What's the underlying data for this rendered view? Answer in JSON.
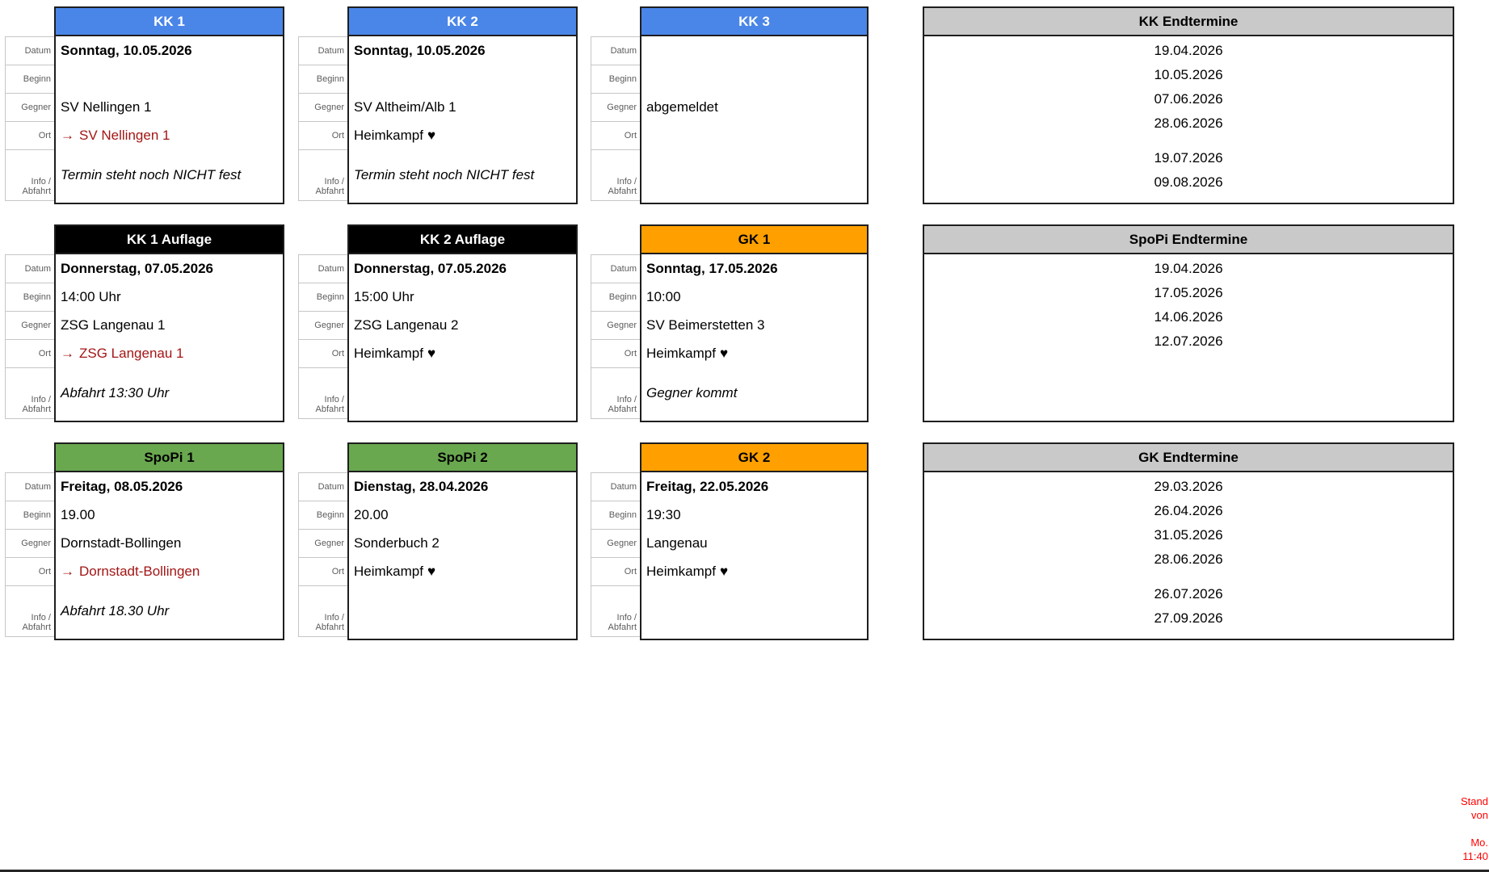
{
  "colors": {
    "header_blue": "#4a86e8",
    "header_black": "#000000",
    "header_orange": "#ffa000",
    "header_green": "#6aa84f",
    "header_gray": "#c9c9c9",
    "away_red": "#a31515",
    "note_red": "#ff0000",
    "border_dark": "#1e1e1e"
  },
  "row_labels": {
    "datum": "Datum",
    "beginn": "Beginn",
    "gegner": "Gegner",
    "ort": "Ort",
    "info_line1": "Info /",
    "info_line2": "Abfahrt"
  },
  "cards": [
    {
      "title": "KK 1",
      "datum": "Sonntag, 10.05.2026",
      "beginn": "",
      "gegner": "SV Nellingen 1",
      "ort_arrow": "→",
      "ort_text": "SV Nellingen 1",
      "ort_heart": "",
      "info": "Termin steht noch NICHT fest"
    },
    {
      "title": "KK 2",
      "datum": "Sonntag, 10.05.2026",
      "beginn": "",
      "gegner": "SV Altheim/Alb 1",
      "ort_arrow": "",
      "ort_text": "Heimkampf",
      "ort_heart": "♥",
      "info": "Termin steht noch NICHT fest"
    },
    {
      "title": "KK 3",
      "datum": "",
      "beginn": "",
      "gegner": "abgemeldet",
      "ort_arrow": "",
      "ort_text": "",
      "ort_heart": "",
      "info": ""
    },
    {
      "title": "KK 1 Auflage",
      "datum": "Donnerstag, 07.05.2026",
      "beginn": "14:00 Uhr",
      "gegner": "ZSG Langenau 1",
      "ort_arrow": "→",
      "ort_text": "ZSG Langenau 1",
      "ort_heart": "",
      "info": "Abfahrt 13:30 Uhr"
    },
    {
      "title": "KK 2 Auflage",
      "datum": "Donnerstag, 07.05.2026",
      "beginn": "15:00 Uhr",
      "gegner": "ZSG Langenau 2",
      "ort_arrow": "",
      "ort_text": "Heimkampf",
      "ort_heart": "♥",
      "info": ""
    },
    {
      "title": "GK 1",
      "datum": "Sonntag, 17.05.2026",
      "beginn": "10:00",
      "gegner": "SV Beimerstetten 3",
      "ort_arrow": "",
      "ort_text": "Heimkampf",
      "ort_heart": "♥",
      "info": "Gegner kommt"
    },
    {
      "title": "SpoPi 1",
      "datum": "Freitag, 08.05.2026",
      "beginn": "19.00",
      "gegner": "Dornstadt-Bollingen",
      "ort_arrow": "→",
      "ort_text": "Dornstadt-Bollingen",
      "ort_heart": "",
      "info": "Abfahrt 18.30 Uhr"
    },
    {
      "title": "SpoPi 2",
      "datum": "Dienstag, 28.04.2026",
      "beginn": "20.00",
      "gegner": "Sonderbuch 2",
      "ort_arrow": "",
      "ort_text": "Heimkampf",
      "ort_heart": "♥",
      "info": ""
    },
    {
      "title": "GK 2",
      "datum": "Freitag, 22.05.2026",
      "beginn": "19:30",
      "gegner": "Langenau",
      "ort_arrow": "",
      "ort_text": "Heimkampf",
      "ort_heart": "♥",
      "info": ""
    }
  ],
  "endtermine": [
    {
      "title": "KK Endtermine",
      "dates": [
        "19.04.2026",
        "10.05.2026",
        "07.06.2026",
        "28.06.2026",
        "19.07.2026",
        "09.08.2026"
      ]
    },
    {
      "title": "SpoPi Endtermine",
      "dates": [
        "19.04.2026",
        "17.05.2026",
        "14.06.2026",
        "12.07.2026"
      ]
    },
    {
      "title": "GK Endtermine",
      "dates": [
        "29.03.2026",
        "26.04.2026",
        "31.05.2026",
        "28.06.2026",
        "26.07.2026",
        "27.09.2026"
      ]
    }
  ],
  "status_note": {
    "lines": [
      "Stand",
      "von",
      "",
      "Mo.",
      "11:40"
    ]
  }
}
